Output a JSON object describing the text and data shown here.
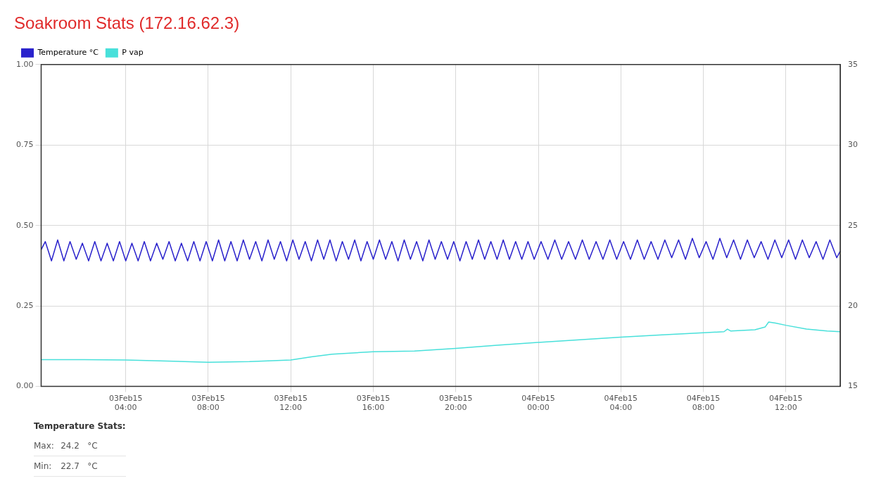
{
  "chart_data": {
    "type": "line",
    "title": "Soakroom Stats (172.16.62.3)",
    "x": [
      "--02-02T23:54",
      "--02-03T00:06",
      "--02-03T00:24",
      "--02-03T00:42",
      "--02-03T01:00",
      "--02-03T01:18",
      "--02-03T01:36",
      "--02-03T01:54",
      "--02-03T02:12",
      "--02-03T02:30",
      "--02-03T02:48",
      "--02-03T03:06",
      "--02-03T03:24",
      "--02-03T03:42",
      "--02-03T04:00",
      "--02-03T04:18",
      "--02-03T04:36",
      "--02-03T04:54",
      "--02-03T05:12",
      "--02-03T05:30",
      "--02-03T05:48",
      "--02-03T06:06",
      "--02-03T06:24",
      "--02-03T06:42",
      "--02-03T07:00",
      "--02-03T07:18",
      "--02-03T07:36",
      "--02-03T07:54",
      "--02-03T08:12",
      "--02-03T08:30",
      "--02-03T08:48",
      "--02-03T09:06",
      "--02-03T09:24",
      "--02-03T09:42",
      "--02-03T10:00",
      "--02-03T10:18",
      "--02-03T10:36",
      "--02-03T10:54",
      "--02-03T11:12",
      "--02-03T11:30",
      "--02-03T11:48",
      "--02-03T12:06",
      "--02-03T12:24",
      "--02-03T12:42",
      "--02-03T13:00",
      "--02-03T13:18",
      "--02-03T13:36",
      "--02-03T13:54",
      "--02-03T14:12",
      "--02-03T14:30",
      "--02-03T14:48",
      "--02-03T15:06",
      "--02-03T15:24",
      "--02-03T15:42",
      "--02-03T16:00",
      "--02-03T16:18",
      "--02-03T16:36",
      "--02-03T16:54",
      "--02-03T17:12",
      "--02-03T17:30",
      "--02-03T17:48",
      "--02-03T18:06",
      "--02-03T18:24",
      "--02-03T18:42",
      "--02-03T19:00",
      "--02-03T19:18",
      "--02-03T19:36",
      "--02-03T19:54",
      "--02-03T20:12",
      "--02-03T20:30",
      "--02-03T20:48",
      "--02-03T21:06",
      "--02-03T21:24",
      "--02-03T21:42",
      "--02-03T22:00",
      "--02-03T22:18",
      "--02-03T22:36",
      "--02-03T22:54",
      "--02-03T23:12",
      "--02-03T23:30",
      "--02-03T23:48",
      "--02-04T00:08",
      "--02-04T00:28",
      "--02-04T00:48",
      "--02-04T01:08",
      "--02-04T01:28",
      "--02-04T01:48",
      "--02-04T02:08",
      "--02-04T02:28",
      "--02-04T02:48",
      "--02-04T03:08",
      "--02-04T03:28",
      "--02-04T03:48",
      "--02-04T04:08",
      "--02-04T04:28",
      "--02-04T04:48",
      "--02-04T05:08",
      "--02-04T05:28",
      "--02-04T05:48",
      "--02-04T06:08",
      "--02-04T06:28",
      "--02-04T06:48",
      "--02-04T07:08",
      "--02-04T07:28",
      "--02-04T07:48",
      "--02-04T08:08",
      "--02-04T08:28",
      "--02-04T08:48",
      "--02-04T09:08",
      "--02-04T09:28",
      "--02-04T09:48",
      "--02-04T10:08",
      "--02-04T10:28",
      "--02-04T10:48",
      "--02-04T11:08",
      "--02-04T11:28",
      "--02-04T11:48",
      "--02-04T12:08",
      "--02-04T12:28",
      "--02-04T12:48",
      "--02-04T13:08",
      "--02-04T13:28",
      "--02-04T13:48",
      "--02-04T14:08",
      "--02-04T14:28",
      "--02-04T14:38"
    ],
    "series": [
      {
        "name": "Temperature °C",
        "color": "#2a22cc",
        "axis": "y2",
        "values": [
          23.5,
          24.0,
          22.8,
          24.1,
          22.8,
          24.0,
          22.9,
          23.9,
          22.8,
          24.0,
          22.8,
          23.9,
          22.8,
          24.0,
          22.8,
          23.9,
          22.8,
          24.0,
          22.8,
          23.9,
          22.9,
          24.0,
          22.8,
          23.9,
          22.8,
          24.0,
          22.8,
          24.0,
          22.8,
          24.1,
          22.8,
          24.0,
          22.8,
          24.1,
          22.9,
          24.0,
          22.8,
          24.1,
          22.9,
          24.0,
          22.8,
          24.1,
          22.9,
          24.0,
          22.8,
          24.1,
          22.9,
          24.1,
          22.8,
          24.0,
          22.9,
          24.1,
          22.8,
          24.0,
          22.9,
          24.1,
          22.9,
          24.0,
          22.8,
          24.1,
          22.9,
          24.0,
          22.8,
          24.1,
          22.9,
          24.0,
          22.9,
          24.0,
          22.8,
          24.0,
          22.9,
          24.1,
          22.9,
          24.0,
          22.9,
          24.1,
          22.9,
          24.0,
          22.9,
          24.0,
          22.9,
          24.0,
          22.9,
          24.1,
          22.9,
          24.0,
          22.9,
          24.1,
          22.9,
          24.0,
          22.9,
          24.1,
          22.9,
          24.0,
          22.9,
          24.1,
          22.9,
          24.0,
          22.9,
          24.1,
          23.0,
          24.1,
          22.9,
          24.2,
          23.0,
          24.0,
          22.9,
          24.2,
          23.0,
          24.1,
          22.9,
          24.1,
          23.0,
          24.0,
          22.9,
          24.1,
          23.0,
          24.1,
          22.9,
          24.1,
          23.0,
          24.0,
          22.9,
          24.1,
          23.0,
          23.4
        ]
      },
      {
        "name": "P vap",
        "color": "#48e0da",
        "axis": "y",
        "x": [
          "--02-02T23:54",
          "--02-03T02:00",
          "--02-03T04:00",
          "--02-03T06:00",
          "--02-03T08:00",
          "--02-03T10:00",
          "--02-03T12:00",
          "--02-03T13:00",
          "--02-03T14:00",
          "--02-03T16:00",
          "--02-03T18:00",
          "--02-03T20:00",
          "--02-03T22:00",
          "--02-04T00:00",
          "--02-04T02:00",
          "--02-04T04:00",
          "--02-04T06:00",
          "--02-04T08:00",
          "--02-04T09:00",
          "--02-04T09:10",
          "--02-04T09:20",
          "--02-04T10:30",
          "--02-04T11:00",
          "--02-04T11:10",
          "--02-04T11:30",
          "--02-04T12:00",
          "--02-04T13:00",
          "--02-04T14:00",
          "--02-04T14:38"
        ],
        "values": [
          0.083,
          0.083,
          0.082,
          0.079,
          0.075,
          0.077,
          0.082,
          0.092,
          0.1,
          0.108,
          0.11,
          0.118,
          0.128,
          0.137,
          0.145,
          0.153,
          0.16,
          0.167,
          0.17,
          0.178,
          0.172,
          0.176,
          0.185,
          0.2,
          0.197,
          0.19,
          0.178,
          0.172,
          0.17
        ]
      }
    ],
    "xlim": [
      "--02-02T23:54",
      "--02-04T14:38"
    ],
    "xticks": [
      {
        "value": "--02-03T04:00",
        "label": "03Feb15 04:00"
      },
      {
        "value": "--02-03T08:00",
        "label": "03Feb15 08:00"
      },
      {
        "value": "--02-03T12:00",
        "label": "03Feb15 12:00"
      },
      {
        "value": "--02-03T16:00",
        "label": "03Feb15 16:00"
      },
      {
        "value": "--02-03T20:00",
        "label": "03Feb15 20:00"
      },
      {
        "value": "--02-04T00:00",
        "label": "04Feb15 00:00"
      },
      {
        "value": "--02-04T04:00",
        "label": "04Feb15 04:00"
      },
      {
        "value": "--02-04T08:00",
        "label": "04Feb15 08:00"
      },
      {
        "value": "--02-04T12:00",
        "label": "04Feb15 12:00"
      }
    ],
    "ylim": [
      0,
      1
    ],
    "yticks": [
      {
        "value": 0,
        "label": "0.00"
      },
      {
        "value": 0.25,
        "label": "0.25"
      },
      {
        "value": 0.5,
        "label": "0.50"
      },
      {
        "value": 0.75,
        "label": "0.75"
      },
      {
        "value": 1,
        "label": "1.00"
      }
    ],
    "y2lim": [
      15,
      35
    ],
    "y2ticks": [
      15,
      20,
      25,
      30,
      35
    ],
    "grid": true,
    "legend": "top left",
    "marker": "none",
    "line_style": "solid",
    "annotations": [
      "Temperature Stats:",
      "Max:\t24.2\t°C",
      "Min:\t22.7\t°C"
    ]
  }
}
